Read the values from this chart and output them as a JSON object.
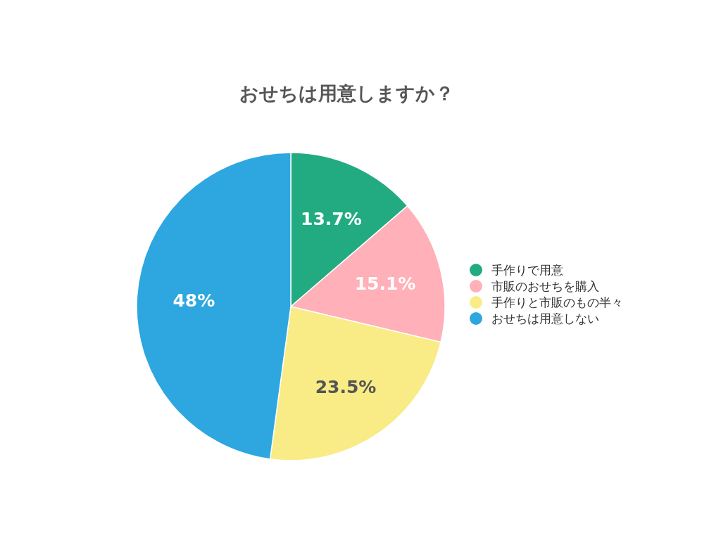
{
  "chart_data": {
    "type": "pie",
    "title": "おせちは用意しますか？",
    "categories": [
      "手作りで用意",
      "市販のおせちを購入",
      "手作りと市販のもの半々",
      "おせちは用意しない"
    ],
    "values": [
      13.7,
      15.1,
      23.5,
      48
    ],
    "colors": [
      "#22ab80",
      "#ffb0b8",
      "#f9ec86",
      "#2ea7e0"
    ],
    "value_labels": [
      "13.7%",
      "15.1%",
      "23.5%",
      "48%"
    ],
    "legend": "right"
  }
}
